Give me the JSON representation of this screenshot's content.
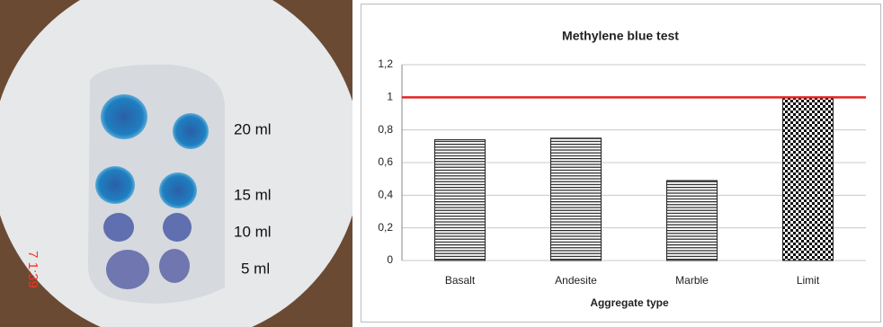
{
  "photo": {
    "labels": [
      "20 ml",
      "15 ml",
      "10 ml",
      "5 ml"
    ],
    "timestamp": "7 1:39"
  },
  "chart_data": {
    "type": "bar",
    "title": "Methylene blue test",
    "x_label": "Aggregate type",
    "categories": [
      "Basalt",
      "Andesite",
      "Marble",
      "Limit"
    ],
    "values": [
      0.74,
      0.75,
      0.49,
      1.0
    ],
    "fills": [
      "stripes",
      "stripes",
      "stripes",
      "checker"
    ],
    "ylim": [
      0,
      1.2
    ],
    "yticks": [
      0,
      {
        "value": 0.2,
        "label": "0,2"
      },
      {
        "value": 0.4,
        "label": "0,4"
      },
      {
        "value": 0.6,
        "label": "0,6"
      },
      {
        "value": 0.8,
        "label": "0,8"
      },
      1,
      {
        "value": 1.2,
        "label": "1,2"
      }
    ],
    "grid": true,
    "reference_line": {
      "value": 1,
      "color": "#e02424"
    }
  }
}
